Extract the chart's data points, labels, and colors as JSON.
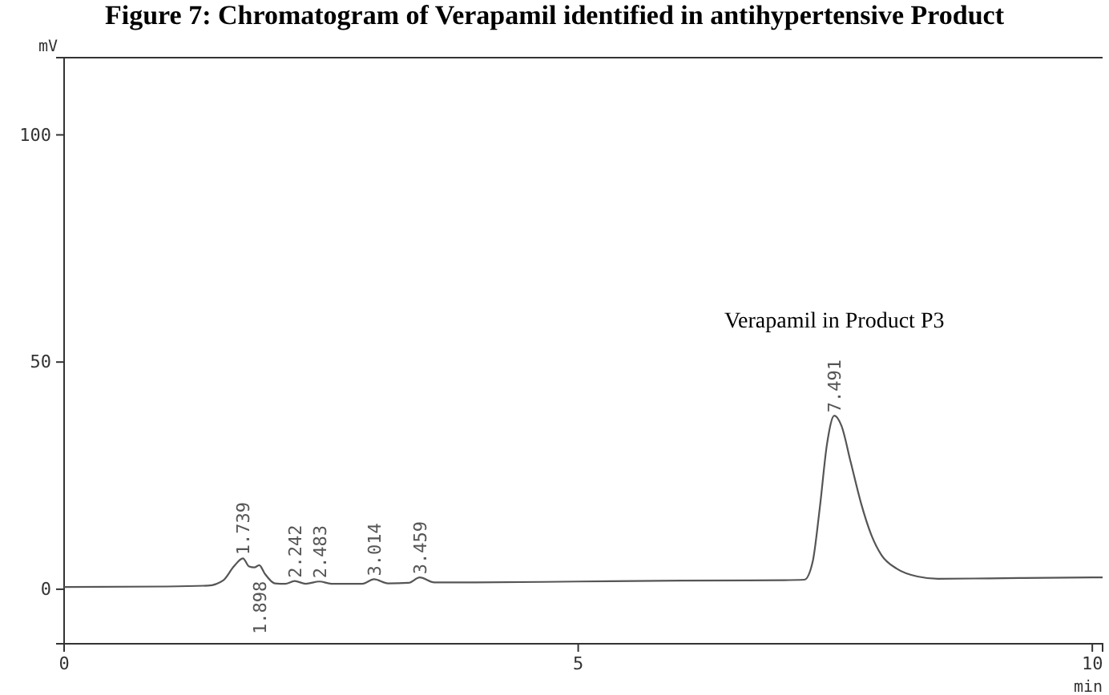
{
  "chart_data": {
    "type": "line",
    "title": "Figure 7: Chromatogram of Verapamil identified in antihypertensive Product",
    "xlabel": "min",
    "ylabel": "mV",
    "xlim": [
      0,
      10.1
    ],
    "ylim": [
      -12,
      117
    ],
    "xticks": [
      0,
      5,
      10
    ],
    "yticks": [
      0,
      50,
      100
    ],
    "grid": false,
    "marker": "none",
    "line_style": "solid",
    "series": [
      {
        "color": "#555555",
        "x": [
          0,
          1,
          1.4,
          1.55,
          1.65,
          1.739,
          1.8,
          1.85,
          1.898,
          1.95,
          2.05,
          2.15,
          2.242,
          2.35,
          2.483,
          2.6,
          2.9,
          3.014,
          3.15,
          3.35,
          3.459,
          3.6,
          4,
          5,
          6,
          7,
          7.2,
          7.28,
          7.35,
          7.42,
          7.491,
          7.56,
          7.65,
          7.75,
          7.85,
          7.95,
          8.1,
          8.3,
          8.5,
          9,
          10,
          10.1
        ],
        "values": [
          0.5,
          0.6,
          0.8,
          2,
          5,
          6.8,
          5,
          4.8,
          5.3,
          3.5,
          1.3,
          1.2,
          1.8,
          1.2,
          1.7,
          1.2,
          1.2,
          2.2,
          1.3,
          1.4,
          2.6,
          1.5,
          1.5,
          1.7,
          1.9,
          2,
          2.1,
          6,
          18,
          32,
          38.2,
          36,
          28,
          19,
          12,
          7.5,
          4.5,
          2.8,
          2.3,
          2.4,
          2.6,
          2.6
        ]
      }
    ],
    "annotations": [
      {
        "text": "1.739",
        "x": 1.739,
        "y": 6.8
      },
      {
        "text": "1.898",
        "x": 1.898,
        "y": 5.3
      },
      {
        "text": "2.242",
        "x": 2.242,
        "y": 1.8
      },
      {
        "text": "2.483",
        "x": 2.483,
        "y": 1.7
      },
      {
        "text": "3.014",
        "x": 3.014,
        "y": 2.2
      },
      {
        "text": "3.459",
        "x": 3.459,
        "y": 2.6
      },
      {
        "text": "7.491",
        "x": 7.491,
        "y": 38.2
      },
      "Verapamil in Product P3"
    ]
  }
}
